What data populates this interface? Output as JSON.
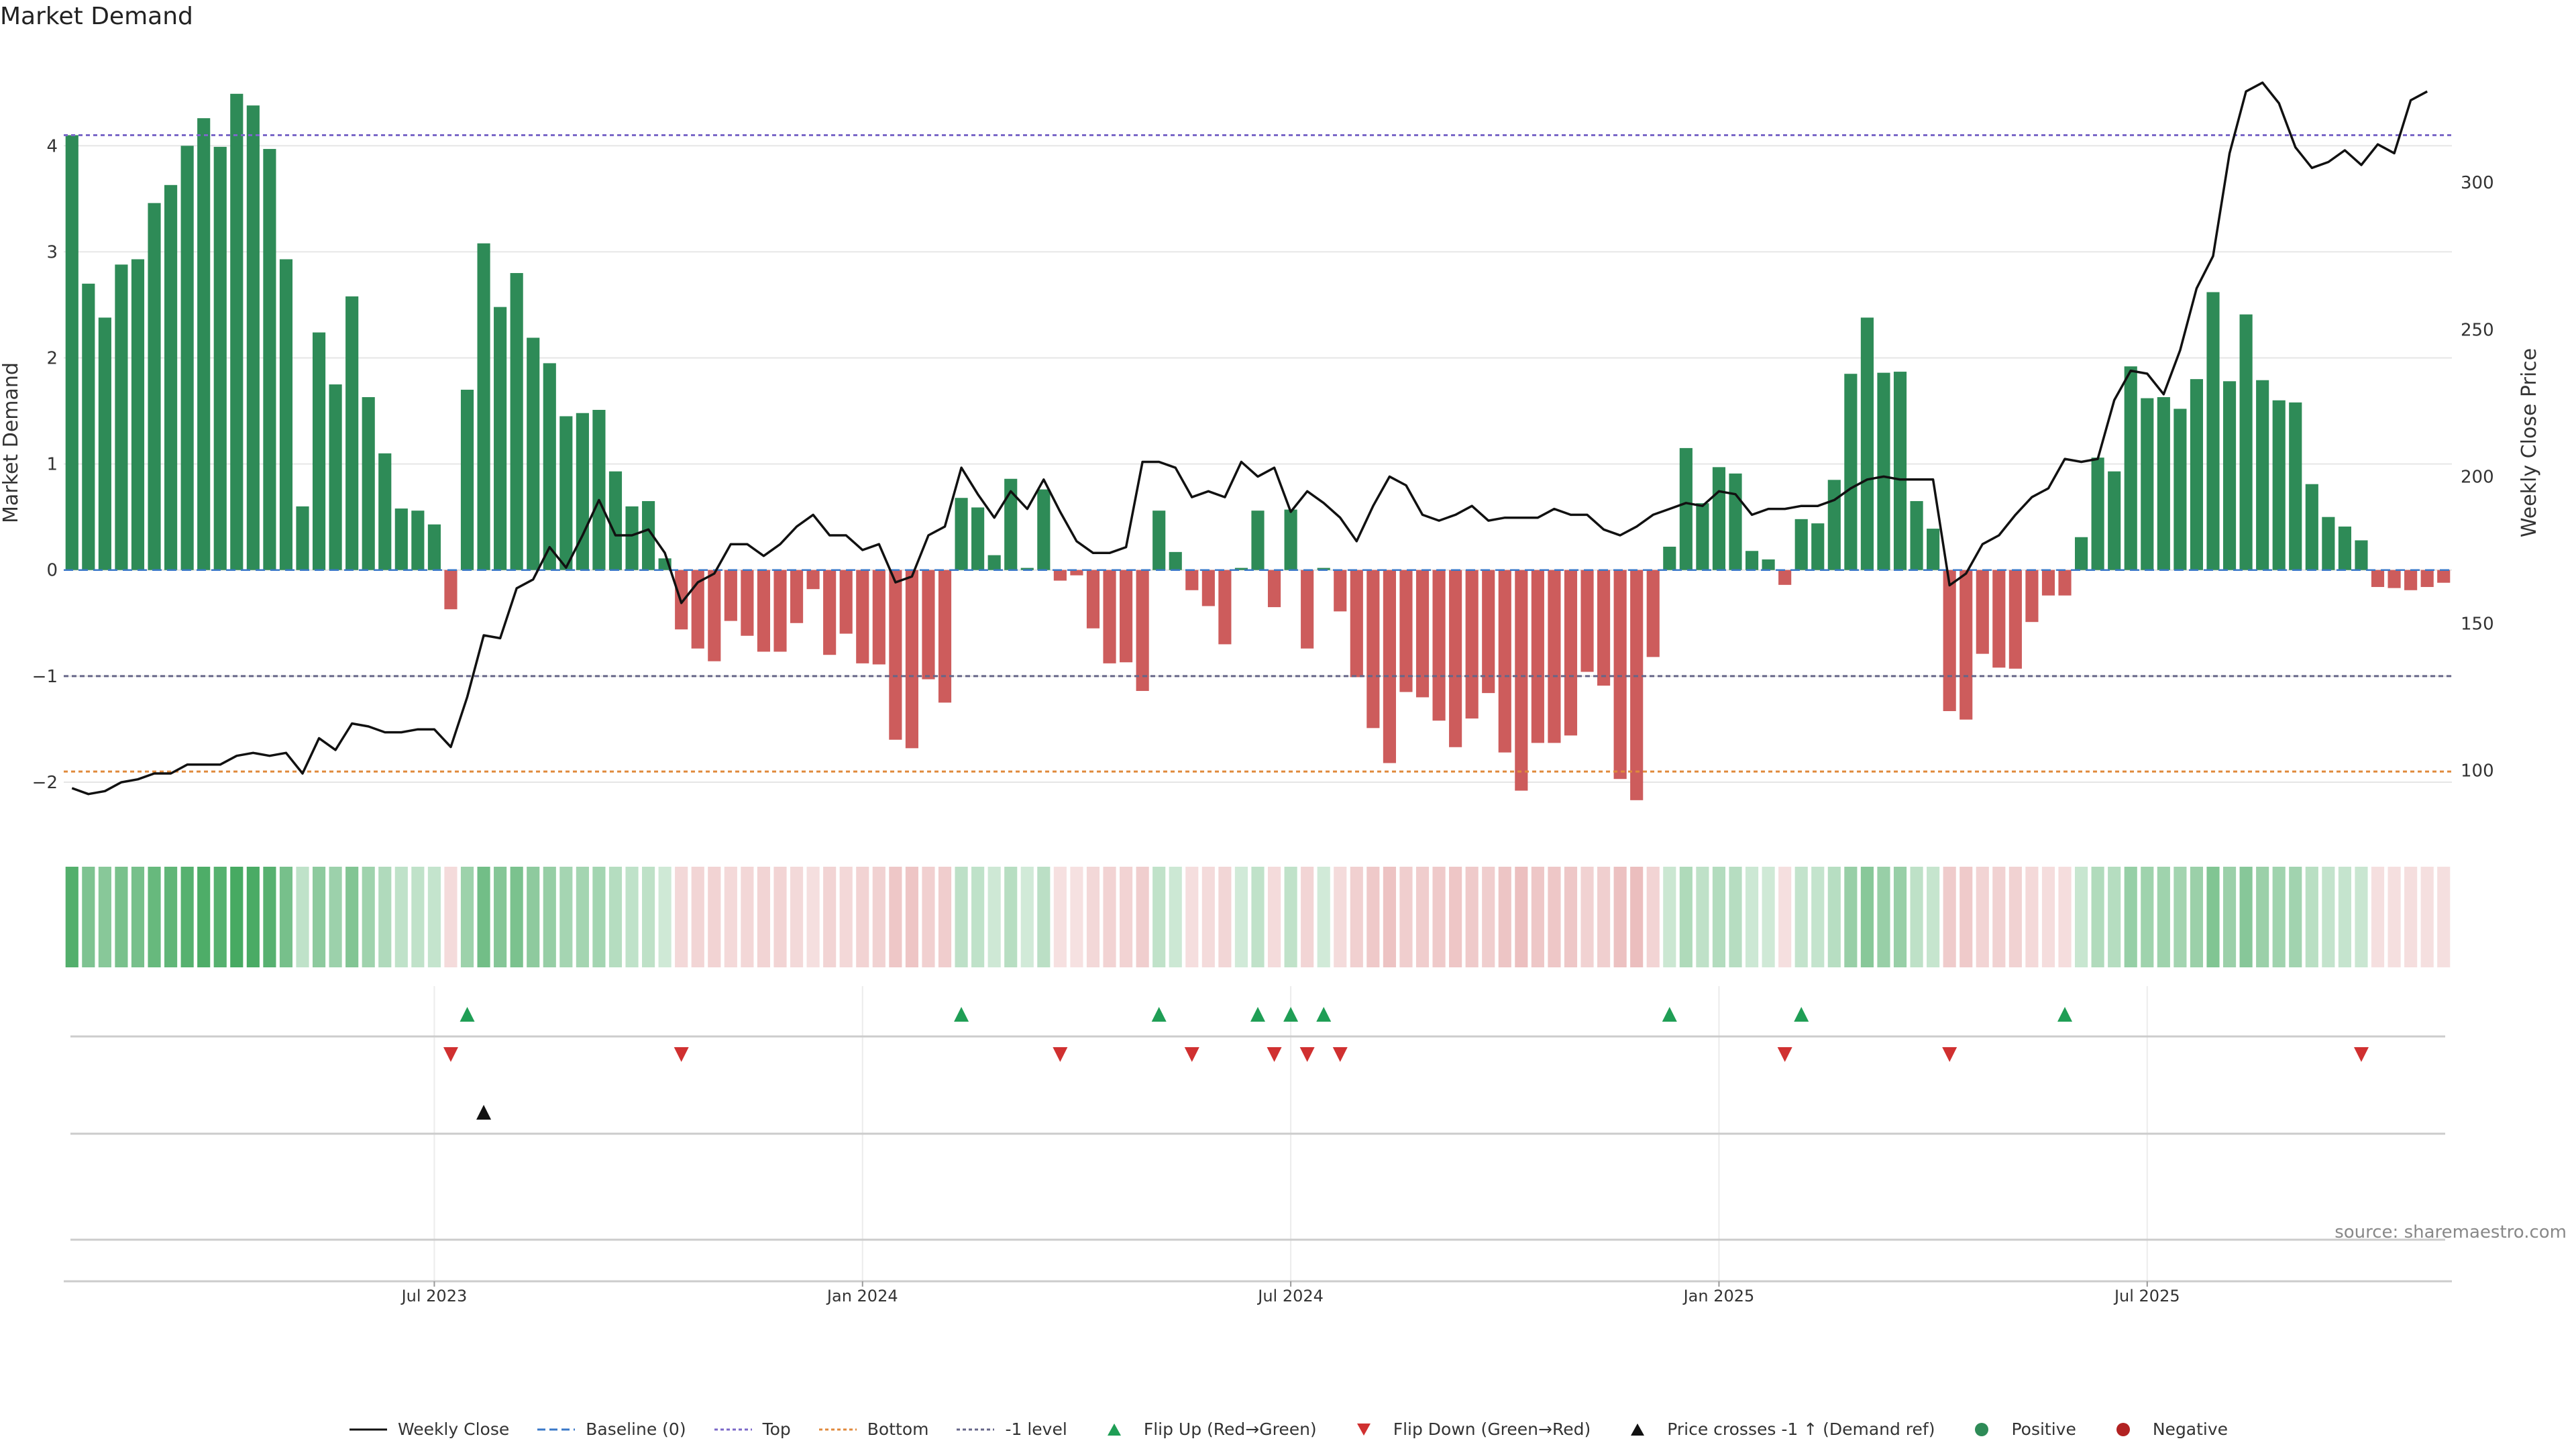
{
  "title": "Market Demand",
  "source": "source: sharemaestro.com",
  "colors": {
    "positive": "#2e8b57",
    "negative": "#cd5c5c",
    "price": "#111111",
    "top": "#7b68c8",
    "bottom": "#e08a3c",
    "minus1": "#666688",
    "flip_up": "#1f9e55",
    "flip_down": "#d03030",
    "cross": "#111111",
    "grid": "#e6e6e6",
    "baseline": "#3a78c8"
  },
  "legend": [
    {
      "label": "Weekly Close",
      "icon": "solid-line",
      "color": "#111111"
    },
    {
      "label": "Baseline (0)",
      "icon": "dashed-line",
      "color": "#3a78c8"
    },
    {
      "label": "Top",
      "icon": "dotted-line",
      "color": "#7b68c8"
    },
    {
      "label": "Bottom",
      "icon": "dotted-line",
      "color": "#e08a3c"
    },
    {
      "label": "-1 level",
      "icon": "dotted-line",
      "color": "#666688"
    },
    {
      "label": "Flip Up (Red→Green)",
      "icon": "triangle-up",
      "color": "#1f9e55"
    },
    {
      "label": "Flip Down (Green→Red)",
      "icon": "triangle-down",
      "color": "#d03030"
    },
    {
      "label": "Price crosses -1 ↑ (Demand ref)",
      "icon": "triangle-up",
      "color": "#111111"
    },
    {
      "label": "Positive",
      "icon": "circle",
      "color": "#2e8b57"
    },
    {
      "label": "Negative",
      "icon": "circle",
      "color": "#b22222"
    }
  ],
  "chart_data": {
    "type": "bar",
    "title": "Market Demand",
    "ylabel": "Market Demand",
    "y2label": "Weekly Close Price",
    "ylim": [
      -2.5,
      4.9
    ],
    "y2lim": [
      78,
      345
    ],
    "yticks": [
      -2,
      -1,
      0,
      1,
      2,
      3,
      4
    ],
    "ytick_labels": [
      "−2",
      "−1",
      "0",
      "1",
      "2",
      "3",
      "4"
    ],
    "y2ticks": [
      100,
      150,
      200,
      250,
      300
    ],
    "y2tick_labels": [
      "100",
      "150",
      "200",
      "250",
      "300"
    ],
    "xticks": [
      {
        "index": 22,
        "label": "Jul 2023"
      },
      {
        "index": 48,
        "label": "Jan 2024"
      },
      {
        "index": 74,
        "label": "Jul 2024"
      },
      {
        "index": 100,
        "label": "Jan 2025"
      },
      {
        "index": 126,
        "label": "Jul 2025"
      }
    ],
    "reference_lines": {
      "baseline": 0,
      "top": 4.1,
      "bottom": -1.9,
      "minus1": -1
    },
    "demand": [
      4.1,
      2.7,
      2.38,
      2.88,
      2.93,
      3.46,
      3.63,
      4.0,
      4.26,
      3.99,
      4.49,
      4.38,
      3.97,
      2.93,
      0.6,
      2.24,
      1.75,
      2.58,
      1.63,
      1.1,
      0.58,
      0.56,
      0.43,
      -0.37,
      1.7,
      3.08,
      2.48,
      2.8,
      2.19,
      1.95,
      1.45,
      1.48,
      1.51,
      0.93,
      0.6,
      0.65,
      0.11,
      -0.56,
      -0.74,
      -0.86,
      -0.48,
      -0.62,
      -0.77,
      -0.77,
      -0.5,
      -0.18,
      -0.8,
      -0.6,
      -0.88,
      -0.89,
      -1.6,
      -1.68,
      -1.03,
      -1.25,
      0.68,
      0.59,
      0.14,
      0.86,
      0.02,
      0.76,
      -0.1,
      -0.05,
      -0.55,
      -0.88,
      -0.87,
      -1.14,
      0.56,
      0.17,
      -0.19,
      -0.34,
      -0.7,
      0.02,
      0.56,
      -0.35,
      0.57,
      -0.74,
      0.02,
      -0.39,
      -1.01,
      -1.49,
      -1.82,
      -1.15,
      -1.2,
      -1.42,
      -1.67,
      -1.4,
      -1.16,
      -1.72,
      -2.08,
      -1.63,
      -1.63,
      -1.56,
      -0.96,
      -1.09,
      -1.97,
      -2.17,
      -0.82,
      0.22,
      1.15,
      0.63,
      0.97,
      0.91,
      0.18,
      0.1,
      -0.14,
      0.48,
      0.44,
      0.85,
      1.85,
      2.38,
      1.86,
      1.87,
      0.65,
      0.39,
      -1.33,
      -1.41,
      -0.79,
      -0.92,
      -0.93,
      -0.49,
      -0.24,
      -0.24,
      0.31,
      1.06,
      0.93,
      1.92,
      1.62,
      1.63,
      1.52,
      1.8,
      2.62,
      1.78,
      2.41,
      1.79,
      1.6,
      1.58,
      0.81,
      0.5,
      0.41,
      0.28,
      -0.16,
      -0.17,
      -0.19,
      -0.16,
      -0.12
    ],
    "price": [
      94,
      92,
      93,
      96,
      97,
      99,
      99,
      102,
      102,
      102,
      105,
      106,
      105,
      106,
      99,
      111,
      107,
      116,
      115,
      113,
      113,
      114,
      114,
      108,
      125,
      146,
      145,
      162,
      165,
      176,
      169,
      180,
      192,
      180,
      180,
      182,
      174,
      157,
      164,
      167,
      177,
      177,
      173,
      177,
      183,
      187,
      180,
      180,
      175,
      177,
      164,
      166,
      180,
      183,
      203,
      194,
      186,
      195,
      189,
      199,
      188,
      178,
      174,
      174,
      176,
      205,
      205,
      203,
      193,
      195,
      193,
      205,
      200,
      203,
      188,
      195,
      191,
      186,
      178,
      190,
      200,
      197,
      187,
      185,
      187,
      190,
      185,
      186,
      186,
      186,
      189,
      187,
      187,
      182,
      180,
      183,
      187,
      189,
      191,
      190,
      195,
      194,
      187,
      189,
      189,
      190,
      190,
      192,
      196,
      199,
      200,
      199,
      199,
      199,
      163,
      167,
      177,
      180,
      187,
      193,
      196,
      206,
      205,
      206,
      226,
      236,
      235,
      228,
      243,
      264,
      275,
      310,
      331,
      334,
      327,
      312,
      305,
      307,
      311,
      306,
      313,
      310,
      328,
      331
    ],
    "flip_up_index": [
      24,
      54,
      66,
      72,
      74,
      76,
      97,
      105,
      121
    ],
    "flip_down_index": [
      23,
      37,
      60,
      68,
      73,
      75,
      77,
      104,
      114,
      139
    ],
    "price_cross_index": [
      25
    ]
  }
}
